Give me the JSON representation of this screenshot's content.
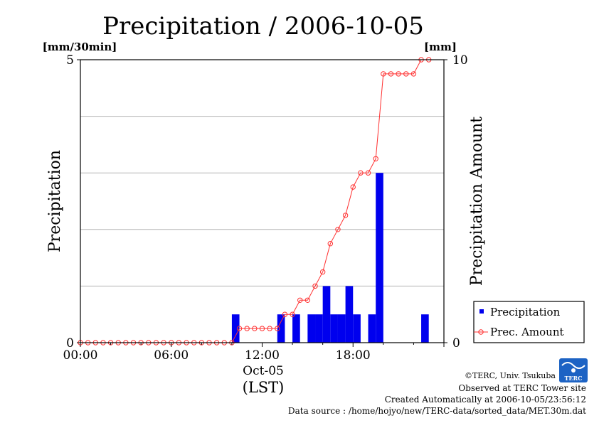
{
  "chart_data": {
    "type": "bar",
    "title": "Precipitation / 2006-10-05",
    "ylabel": "Precipitation",
    "y2label": "Precipitation Amount",
    "yunit": "[mm/30min]",
    "y2unit": "[mm]",
    "xlabel_date": "Oct-05",
    "xlabel_tz": "(LST)",
    "ylim": [
      0,
      5
    ],
    "y2lim": [
      0,
      10
    ],
    "y_ticks": [
      "0",
      "5"
    ],
    "y2_ticks": [
      "0",
      "10"
    ],
    "x_ticks": [
      "00:00",
      "06:00",
      "12:00",
      "18:00"
    ],
    "grid": true,
    "legend_position": "bottom-right",
    "series": [
      {
        "name": "Precipitation",
        "type": "bar",
        "color": "#0000ee",
        "times": [
          "10:00",
          "13:00",
          "14:00",
          "15:00",
          "15:30",
          "16:00",
          "16:30",
          "17:00",
          "17:30",
          "18:00",
          "19:00",
          "19:30",
          "22:30"
        ],
        "values": [
          0.5,
          0.5,
          0.5,
          0.5,
          0.5,
          1.0,
          0.5,
          0.5,
          1.0,
          0.5,
          0.5,
          3.0,
          0.5
        ]
      },
      {
        "name": "Prec. Amount",
        "type": "line",
        "color": "#ff3030",
        "times": [
          "00:00",
          "00:30",
          "01:00",
          "01:30",
          "02:00",
          "02:30",
          "03:00",
          "03:30",
          "04:00",
          "04:30",
          "05:00",
          "05:30",
          "06:00",
          "06:30",
          "07:00",
          "07:30",
          "08:00",
          "08:30",
          "09:00",
          "09:30",
          "10:00",
          "10:30",
          "11:00",
          "11:30",
          "12:00",
          "12:30",
          "13:00",
          "13:30",
          "14:00",
          "14:30",
          "15:00",
          "15:30",
          "16:00",
          "16:30",
          "17:00",
          "17:30",
          "18:00",
          "18:30",
          "19:00",
          "19:30",
          "20:00",
          "20:30",
          "21:00",
          "21:30",
          "22:00",
          "22:30",
          "23:00"
        ],
        "values": [
          0,
          0,
          0,
          0,
          0,
          0,
          0,
          0,
          0,
          0,
          0,
          0,
          0,
          0,
          0,
          0,
          0,
          0,
          0,
          0,
          0,
          0.5,
          0.5,
          0.5,
          0.5,
          0.5,
          0.5,
          1.0,
          1.0,
          1.5,
          1.5,
          2.0,
          2.5,
          3.5,
          4.0,
          4.5,
          5.5,
          6.0,
          6.0,
          6.5,
          9.5,
          9.5,
          9.5,
          9.5,
          9.5,
          10.0,
          10.0
        ]
      }
    ]
  },
  "footer": {
    "copyright": "©TERC, Univ. Tsukuba",
    "observed": "Observed at TERC Tower site",
    "created": "Created Automatically at 2006-10-05/23:56:12",
    "source": "Data source : /home/hojyo/new/TERC-data/sorted_data/MET.30m.dat"
  },
  "logo": {
    "text": "TERC"
  }
}
